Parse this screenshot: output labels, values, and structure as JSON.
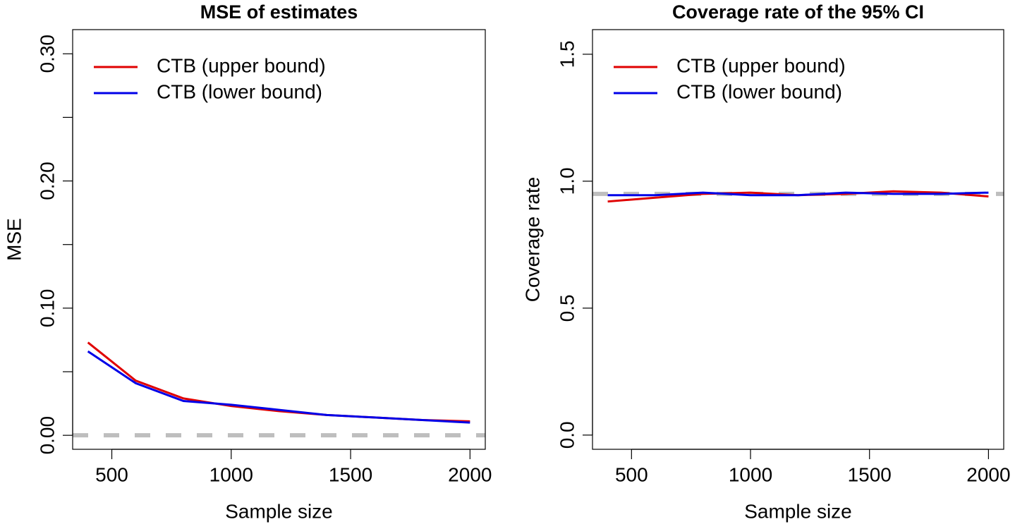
{
  "chart_data": [
    {
      "type": "line",
      "title": "MSE of estimates",
      "xlabel": "Sample size",
      "ylabel": "MSE",
      "x": [
        400,
        600,
        800,
        1000,
        1200,
        1400,
        1600,
        1800,
        2000
      ],
      "series": [
        {
          "name": "CTB (upper bound)",
          "color": "#e00000",
          "values": [
            0.073,
            0.043,
            0.029,
            0.023,
            0.019,
            0.016,
            0.014,
            0.012,
            0.011
          ]
        },
        {
          "name": "CTB (lower bound)",
          "color": "#0000e8",
          "values": [
            0.066,
            0.041,
            0.027,
            0.024,
            0.02,
            0.016,
            0.014,
            0.012,
            0.01
          ]
        }
      ],
      "reference": 0,
      "reference_color": "#bebebe",
      "xlim": [
        336,
        2064
      ],
      "xticks": [
        500,
        1000,
        1500,
        2000
      ],
      "ylim": [
        -0.011,
        0.319
      ],
      "yticks": [
        {
          "value": 0,
          "label": "0.00"
        },
        {
          "value": 0.1,
          "label": "0.10"
        },
        {
          "value": 0.2,
          "label": "0.20"
        },
        {
          "value": 0.3,
          "label": "0.30"
        }
      ],
      "yticks_minor": [
        0.05,
        0.15,
        0.25
      ],
      "legend": "topleft"
    },
    {
      "type": "line",
      "title": "Coverage rate of the 95% CI",
      "xlabel": "Sample size",
      "ylabel": "Coverage rate",
      "x": [
        400,
        600,
        800,
        1000,
        1200,
        1400,
        1600,
        1800,
        2000
      ],
      "series": [
        {
          "name": "CTB (upper bound)",
          "color": "#e00000",
          "values": [
            0.92,
            0.935,
            0.95,
            0.955,
            0.945,
            0.95,
            0.96,
            0.955,
            0.94
          ]
        },
        {
          "name": "CTB (lower bound)",
          "color": "#0000e8",
          "values": [
            0.945,
            0.945,
            0.955,
            0.945,
            0.945,
            0.955,
            0.95,
            0.95,
            0.955
          ]
        }
      ],
      "reference": 0.95,
      "reference_color": "#bebebe",
      "xlim": [
        336,
        2064
      ],
      "xticks": [
        500,
        1000,
        1500,
        2000
      ],
      "ylim": [
        -0.056,
        1.597
      ],
      "yticks": [
        {
          "value": 0,
          "label": "0.0"
        },
        0.5,
        {
          "value": 1,
          "label": "1.0"
        },
        1.5
      ],
      "legend": "topleft"
    }
  ]
}
